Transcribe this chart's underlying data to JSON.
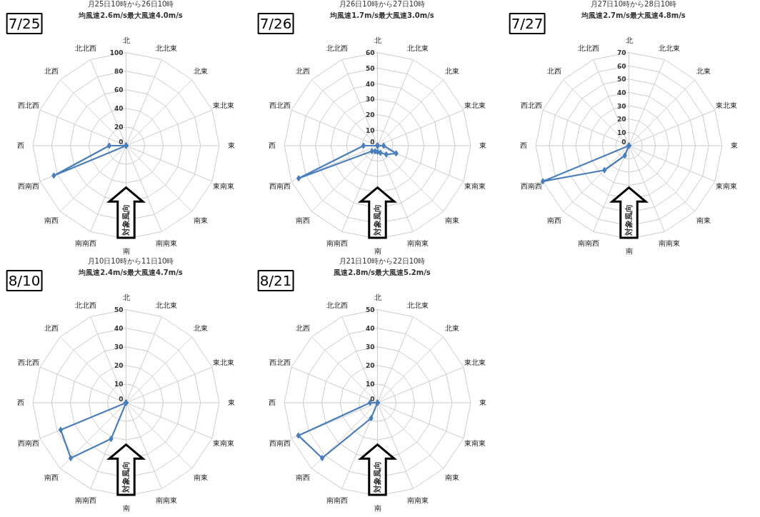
{
  "chart_data": [
    {
      "type": "radar",
      "title": "月25日10時から26日10時",
      "subtitle": "均風速2.6m/s最大風速4.0m/s",
      "annotations": [
        "7/25",
        "対象風向"
      ],
      "categories": [
        "北",
        "北北東",
        "北東",
        "東北東",
        "東",
        "東南東",
        "南東",
        "南南東",
        "南",
        "南南西",
        "南西",
        "西南西",
        "西",
        "西北西",
        "北西",
        "北北西"
      ],
      "ylim": [
        0,
        100
      ],
      "yticks": [
        0,
        20,
        40,
        60,
        80,
        100
      ],
      "grid": true,
      "marker": "diamond",
      "line_style": "solid",
      "series": [
        {
          "color": "#4a7ebb",
          "values": [
            0,
            0,
            0,
            0,
            0,
            0,
            0,
            0,
            0,
            0,
            0,
            84,
            18,
            0,
            0,
            0
          ]
        }
      ]
    },
    {
      "type": "radar",
      "title": "月26日10時から27日10時",
      "subtitle": "均風速1.7m/s最大風速3.0m/s",
      "annotations": [
        "7/26",
        "対象風向"
      ],
      "categories": [
        "北",
        "北北東",
        "北東",
        "東北東",
        "東",
        "東南東",
        "南東",
        "南南東",
        "南",
        "南南西",
        "南西",
        "西南西",
        "西",
        "西北西",
        "北西",
        "北北西"
      ],
      "ylim": [
        0,
        60
      ],
      "yticks": [
        0,
        10,
        20,
        30,
        40,
        50,
        60
      ],
      "grid": true,
      "marker": "diamond",
      "line_style": "solid",
      "series": [
        {
          "color": "#4a7ebb",
          "values": [
            0,
            0,
            0,
            0,
            4,
            13,
            8,
            5,
            4,
            4,
            5,
            55,
            9,
            0,
            0,
            0
          ]
        }
      ]
    },
    {
      "type": "radar",
      "title": "月27日10時から28日10時",
      "subtitle": "均風速2.7m/s最大風速4.8m/s",
      "annotations": [
        "7/27",
        "対象風向"
      ],
      "categories": [
        "北",
        "北北東",
        "北東",
        "東北東",
        "東",
        "東南東",
        "南東",
        "南南東",
        "南",
        "南南西",
        "南西",
        "西南西",
        "西",
        "西北西",
        "北西",
        "北北西"
      ],
      "ylim": [
        0,
        70
      ],
      "yticks": [
        0,
        10,
        20,
        30,
        40,
        50,
        60,
        70
      ],
      "grid": true,
      "marker": "diamond",
      "line_style": "solid",
      "series": [
        {
          "color": "#4a7ebb",
          "values": [
            0,
            0,
            0,
            0,
            0,
            0,
            0,
            0,
            0,
            8,
            26,
            70,
            0,
            0,
            0,
            0
          ]
        }
      ]
    },
    {
      "type": "radar",
      "title": "月10日10時から11日10時",
      "subtitle": "均風速2.4m/s最大風速4.7m/s",
      "annotations": [
        "8/10",
        "対象風向"
      ],
      "categories": [
        "北",
        "北北東",
        "北東",
        "東北東",
        "東",
        "東南東",
        "南東",
        "南南東",
        "南",
        "南南西",
        "南西",
        "西南西",
        "西",
        "西北西",
        "北西",
        "北北西"
      ],
      "ylim": [
        0,
        50
      ],
      "yticks": [
        0,
        10,
        20,
        30,
        40,
        50
      ],
      "grid": true,
      "marker": "diamond",
      "line_style": "solid",
      "series": [
        {
          "color": "#4a7ebb",
          "values": [
            0,
            0,
            0,
            0,
            0,
            0,
            0,
            0,
            0,
            21,
            42,
            38,
            0,
            0,
            0,
            0
          ]
        }
      ]
    },
    {
      "type": "radar",
      "title": "月21日10時から22日10時",
      "subtitle": "風速2.8m/s最大風速5.2m/s",
      "annotations": [
        "8/21",
        "対象風向"
      ],
      "categories": [
        "北",
        "北北東",
        "北東",
        "東北東",
        "東",
        "東南東",
        "南東",
        "南南東",
        "南",
        "南南西",
        "南西",
        "西南西",
        "西",
        "西北西",
        "北西",
        "北北西"
      ],
      "ylim": [
        0,
        50
      ],
      "yticks": [
        0,
        10,
        20,
        30,
        40,
        50
      ],
      "grid": true,
      "marker": "diamond",
      "line_style": "solid",
      "series": [
        {
          "color": "#4a7ebb",
          "values": [
            0,
            0,
            0,
            0,
            0,
            0,
            0,
            0,
            0,
            9,
            42,
            46,
            4,
            0,
            0,
            0
          ]
        }
      ]
    }
  ]
}
